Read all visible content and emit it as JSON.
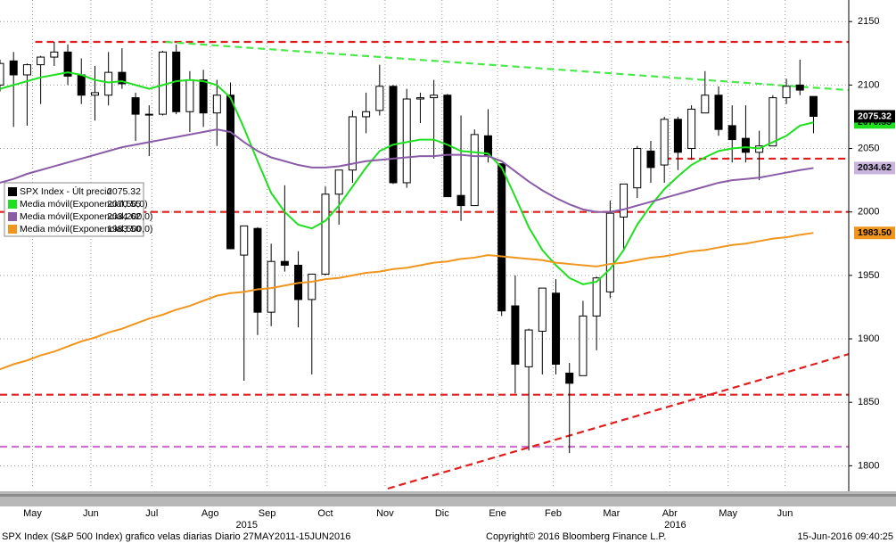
{
  "chart_data": {
    "type": "candlestick",
    "ylim": [
      1782,
      2167
    ],
    "yticks": [
      1800,
      1850,
      1900,
      1950,
      2000,
      2050,
      2100,
      2150
    ],
    "xlim": [
      0,
      62.6
    ],
    "xticks": [
      {
        "value": 2.4,
        "label": "May"
      },
      {
        "value": 6.7,
        "label": "Jun"
      },
      {
        "value": 11.2,
        "label": "Jul"
      },
      {
        "value": 15.5,
        "label": "Ago"
      },
      {
        "value": 19.7,
        "label": "Sep"
      },
      {
        "value": 24,
        "label": "Oct"
      },
      {
        "value": 28.4,
        "label": "Nov"
      },
      {
        "value": 32.6,
        "label": "Dic"
      },
      {
        "value": 36.7,
        "label": "Ene"
      },
      {
        "value": 40.8,
        "label": "Feb"
      },
      {
        "value": 45.1,
        "label": "Mar"
      },
      {
        "value": 49.4,
        "label": "Abr"
      },
      {
        "value": 53.7,
        "label": "May"
      },
      {
        "value": 57.9,
        "label": "Jun"
      }
    ],
    "year_labels": [
      {
        "value": 18.2,
        "label": "2015"
      },
      {
        "value": 49.8,
        "label": "2016"
      }
    ],
    "grid": true,
    "series": [
      {
        "name": "SPX Index - Últ precio",
        "color": "#000000",
        "value_label": "2075.32",
        "open": [
          2100,
          2119,
          2108,
          2116,
          2122,
          2126,
          2108,
          2092,
          2092,
          2110,
          2090,
          2077,
          2077,
          2126,
          2079,
          2104,
          2078,
          2092,
          1966,
          1987,
          1921,
          1961,
          1958,
          1931,
          1951,
          2014,
          2033,
          2075,
          2080,
          2099,
          2023,
          2089,
          2090,
          2092,
          2013,
          2005,
          2060,
          2038,
          1926,
          1878,
          1906,
          1936,
          1873,
          1871,
          1918,
          1937,
          1996,
          2019,
          2048,
          2037,
          2073,
          2050,
          2078,
          2092,
          2068,
          2058,
          2047,
          2052,
          2090,
          2100,
          2091
        ],
        "high": [
          2120,
          2126,
          2117,
          2123,
          2134,
          2132,
          2121,
          2115,
          2126,
          2129,
          2094,
          2084,
          2127,
          2132,
          2111,
          2112,
          2104,
          2102,
          1989,
          1988,
          1975,
          2021,
          1969,
          1951,
          2020,
          2033,
          2080,
          2094,
          2116,
          2100,
          2097,
          2094,
          2104,
          2093,
          2076,
          2065,
          2081,
          2038,
          1950,
          1908,
          1940,
          1947,
          1881,
          1930,
          1949,
          2009,
          2022,
          2052,
          2056,
          2075,
          2075,
          2084,
          2111,
          2099,
          2084,
          2084,
          2064,
          2092,
          2105,
          2120,
          2091
        ],
        "low": [
          2095,
          2067,
          2068,
          2085,
          2115,
          2100,
          2085,
          2072,
          2084,
          2097,
          2056,
          2044,
          2076,
          2077,
          2063,
          2067,
          2052,
          1971,
          1867,
          1903,
          1910,
          1953,
          1909,
          1872,
          1950,
          1990,
          2023,
          2062,
          2076,
          2022,
          2019,
          2070,
          2042,
          2012,
          1993,
          2005,
          2039,
          1918,
          1857,
          1812,
          1872,
          1872,
          1810,
          1871,
          1891,
          1932,
          1969,
          2011,
          2023,
          2023,
          2033,
          2041,
          2078,
          2060,
          2039,
          2039,
          2025,
          2052,
          2085,
          2092,
          2062
        ],
        "close": [
          2117,
          2108,
          2116,
          2122,
          2126,
          2107,
          2092,
          2094,
          2110,
          2101,
          2077,
          2077,
          2126,
          2079,
          2104,
          2078,
          2092,
          1971,
          1989,
          1921,
          1961,
          1958,
          1931,
          1951,
          2014,
          2033,
          2075,
          2079,
          2099,
          2023,
          2089,
          2090,
          2092,
          2012,
          2005,
          2061,
          2044,
          1922,
          1880,
          1907,
          1940,
          1880,
          1865,
          1918,
          1948,
          1999,
          2022,
          2050,
          2035,
          2073,
          2047,
          2081,
          2092,
          2065,
          2057,
          2047,
          2052,
          2090,
          2099,
          2096,
          2075.32
        ]
      },
      {
        "name": "Media móvil(Exponencial,50,0)",
        "color": "#1ee01e",
        "value_label": "2070.55",
        "values": [
          2097,
          2100,
          2103,
          2106,
          2108,
          2110,
          2108,
          2104,
          2102,
          2103,
          2100,
          2097,
          2100,
          2103,
          2104,
          2103,
          2100,
          2090,
          2066,
          2040,
          2015,
          2000,
          1990,
          1987,
          1993,
          2005,
          2020,
          2035,
          2048,
          2053,
          2055,
          2057,
          2057,
          2053,
          2048,
          2047,
          2046,
          2035,
          2012,
          1988,
          1970,
          1958,
          1948,
          1943,
          1945,
          1955,
          1970,
          1990,
          2005,
          2018,
          2028,
          2037,
          2043,
          2048,
          2050,
          2051,
          2050,
          2055,
          2060,
          2068,
          2070.55
        ]
      },
      {
        "name": "Media móvil(Exponencial,200,0)",
        "color": "#8a5ca8",
        "value_label": "2034.62",
        "values": [
          2023,
          2026,
          2030,
          2033,
          2036,
          2039,
          2042,
          2045,
          2048,
          2051,
          2053,
          2055,
          2057,
          2059,
          2061,
          2063,
          2065,
          2063,
          2055,
          2048,
          2043,
          2040,
          2037,
          2035,
          2035,
          2036,
          2038,
          2040,
          2041,
          2042,
          2043,
          2044,
          2044,
          2045,
          2045,
          2044,
          2044,
          2040,
          2032,
          2024,
          2017,
          2011,
          2006,
          2002,
          2000,
          2000,
          2002,
          2005,
          2008,
          2011,
          2014,
          2017,
          2020,
          2023,
          2025,
          2026,
          2027,
          2029,
          2031,
          2033,
          2034.62
        ]
      },
      {
        "name": "Media móvil(Exponencial,500,0)",
        "color": "#f0961e",
        "value_label": "1983.50",
        "values": [
          1876,
          1880,
          1883,
          1887,
          1890,
          1894,
          1898,
          1901,
          1905,
          1908,
          1912,
          1916,
          1919,
          1923,
          1926,
          1930,
          1934,
          1936,
          1937,
          1939,
          1940,
          1942,
          1944,
          1945,
          1947,
          1948,
          1950,
          1952,
          1953,
          1955,
          1956,
          1958,
          1960,
          1961,
          1963,
          1964,
          1966,
          1965,
          1964,
          1963,
          1962,
          1960,
          1959,
          1958,
          1957,
          1959,
          1960,
          1962,
          1964,
          1965,
          1967,
          1969,
          1970,
          1972,
          1974,
          1975,
          1977,
          1979,
          1980,
          1982,
          1983.5
        ]
      }
    ],
    "levels": [
      {
        "value": 2134,
        "from": 2.6,
        "color": "#e01e1e"
      },
      {
        "value": 2042,
        "from": 49,
        "color": "#e01e1e"
      },
      {
        "value": 2000,
        "from": 0,
        "color": "#e01e1e"
      },
      {
        "value": 1856,
        "from": 0,
        "color": "#e01e1e"
      },
      {
        "value": 1815,
        "from": 0,
        "color": "#d070d0"
      }
    ],
    "trend_lines": [
      {
        "x": [
          12.2,
          62.6
        ],
        "y": [
          2134,
          2096
        ],
        "color": "#4be84b"
      },
      {
        "x": [
          28.6,
          62.6
        ],
        "y": [
          1782,
          1888
        ],
        "color": "#e01e1e"
      }
    ],
    "footer": {
      "left": "SPX Index (S&P 500 Index) grafico velas diarias  Diario 27MAY2011-15JUN2016",
      "center": "Copyright© 2016 Bloomberg Finance L.P.",
      "right": "15-Jun-2016 09:40:25"
    }
  }
}
